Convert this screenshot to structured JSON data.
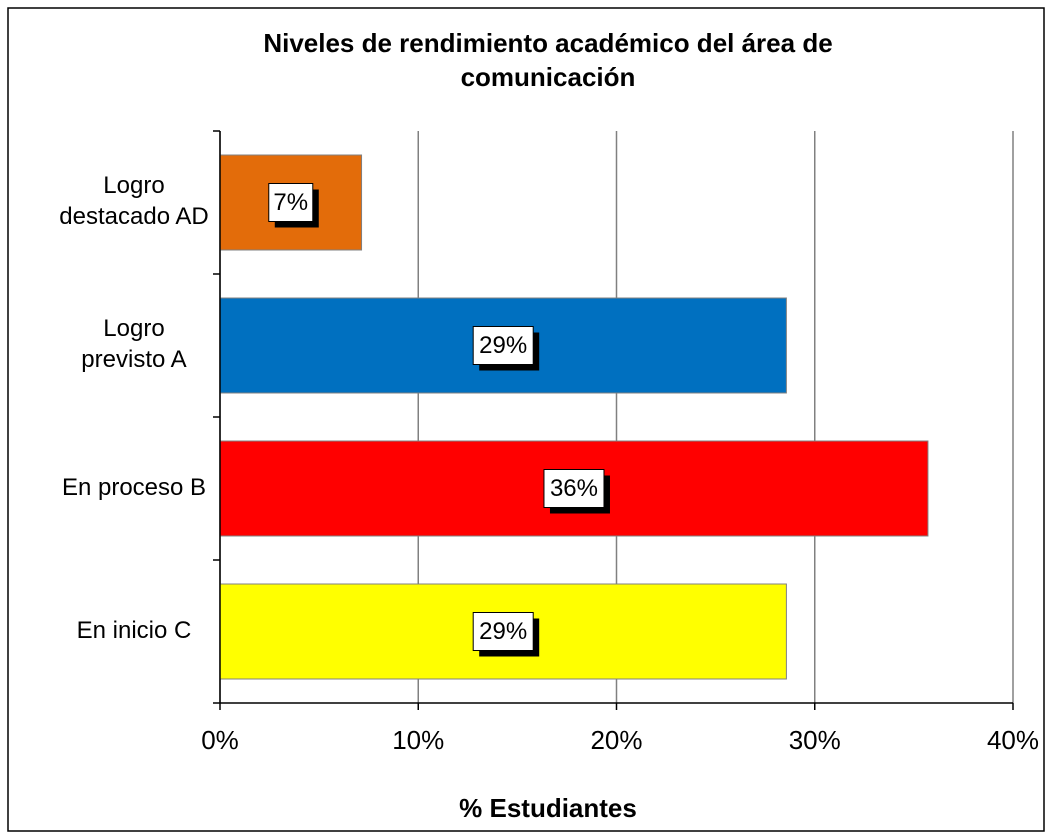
{
  "chart_data": {
    "type": "barh",
    "title": "Niveles de rendimiento académico del área de\ncomunicación",
    "categories": [
      "Logro\ndestacado AD",
      "Logro\nprevisto A",
      "En proceso B",
      "En inicio C"
    ],
    "values": [
      7.14,
      28.57,
      35.71,
      28.57
    ],
    "value_labels": [
      "7%",
      "29%",
      "36%",
      "29%"
    ],
    "colors": [
      "#e36c0a",
      "#0070c0",
      "#ff0000",
      "#ffff00"
    ],
    "xlabel": "% Estudiantes",
    "xlim": [
      0,
      40
    ],
    "xticks": [
      {
        "value": 0,
        "label": "0%"
      },
      {
        "value": 10,
        "label": "10%"
      },
      {
        "value": 20,
        "label": "20%"
      },
      {
        "value": 30,
        "label": "30%"
      },
      {
        "value": 40,
        "label": "40%"
      }
    ],
    "grid": true
  }
}
